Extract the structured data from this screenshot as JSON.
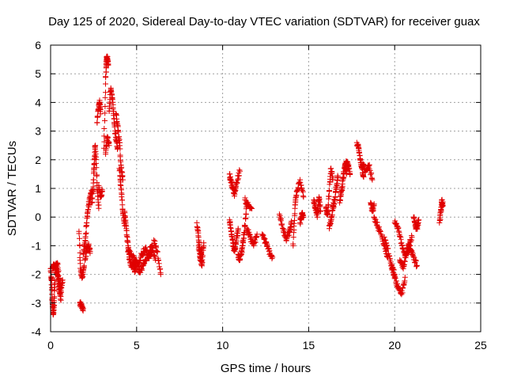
{
  "chart_data": {
    "type": "scatter",
    "title": "Day 125 of 2020, Sidereal Day-to-day VTEC variation (SDTVAR) for receiver guax",
    "xlabel": "GPS time / hours",
    "ylabel": "SDTVAR / TECUs",
    "xlim": [
      0,
      25
    ],
    "ylim": [
      -4,
      6
    ],
    "xticks": [
      0,
      5,
      10,
      15,
      20,
      25
    ],
    "xtick_labels": [
      "0",
      "5",
      "10",
      "15",
      "20",
      "25"
    ],
    "yticks": [
      -4,
      -3,
      -2,
      -1,
      0,
      1,
      2,
      3,
      4,
      5,
      6
    ],
    "ytick_labels": [
      "-4",
      "-3",
      "-2",
      "-1",
      "0",
      "1",
      "2",
      "3",
      "4",
      "5",
      "6"
    ],
    "grid": true,
    "marker": "+",
    "color": "#e00000",
    "series": [
      {
        "name": "SDTVAR",
        "segments": [
          {
            "x": [
              0.0,
              0.05,
              0.1,
              0.15,
              0.2,
              0.25
            ],
            "y": [
              -1.8,
              -2.2,
              -3.0,
              -3.4,
              -3.1,
              -2.2
            ]
          },
          {
            "x": [
              0.1,
              0.2,
              0.3,
              0.4,
              0.5,
              0.6
            ],
            "y": [
              -1.8,
              -1.7,
              -1.8,
              -2.0,
              -2.5,
              -2.9
            ]
          },
          {
            "x": [
              0.3,
              0.4,
              0.5,
              0.6,
              0.7
            ],
            "y": [
              -1.7,
              -1.6,
              -2.3,
              -2.6,
              -2.2
            ]
          },
          {
            "x": [
              1.65,
              1.75,
              1.85,
              1.95
            ],
            "y": [
              -0.5,
              -1.9,
              -2.1,
              -1.7
            ]
          },
          {
            "x": [
              1.7,
              1.8,
              1.9
            ],
            "y": [
              -3.0,
              -3.1,
              -3.2
            ]
          },
          {
            "x": [
              1.9,
              2.0,
              2.1,
              2.2,
              2.3,
              2.4
            ],
            "y": [
              -1.3,
              -0.9,
              -0.2,
              0.4,
              0.7,
              0.9
            ]
          },
          {
            "x": [
              2.0,
              2.1,
              2.2,
              2.3
            ],
            "y": [
              -1.5,
              -1.1,
              -1.0,
              -1.2
            ]
          },
          {
            "x": [
              2.4,
              2.5,
              2.55,
              2.6,
              2.7,
              2.8
            ],
            "y": [
              0.5,
              1.3,
              2.0,
              2.5,
              1.1,
              0.3
            ]
          },
          {
            "x": [
              2.7,
              2.8,
              2.85,
              2.9
            ],
            "y": [
              3.3,
              3.9,
              4.0,
              3.6
            ]
          },
          {
            "x": [
              2.8,
              2.9,
              3.0
            ],
            "y": [
              1.1,
              0.7,
              0.9
            ]
          },
          {
            "x": [
              3.1,
              3.2,
              3.25,
              3.3,
              3.35
            ],
            "y": [
              2.4,
              4.9,
              5.5,
              5.6,
              5.3
            ]
          },
          {
            "x": [
              3.2,
              3.3,
              3.4
            ],
            "y": [
              2.2,
              2.8,
              2.5
            ]
          },
          {
            "x": [
              3.4,
              3.5,
              3.6,
              3.7,
              3.8,
              3.9
            ],
            "y": [
              3.7,
              4.5,
              4.1,
              3.3,
              2.7,
              2.4
            ]
          },
          {
            "x": [
              3.8,
              3.9,
              4.0,
              4.1,
              4.2
            ],
            "y": [
              3.6,
              3.2,
              2.6,
              1.7,
              1.3
            ]
          },
          {
            "x": [
              4.0,
              4.1,
              4.2,
              4.3
            ],
            "y": [
              1.7,
              1.0,
              0.2,
              -0.3
            ]
          },
          {
            "x": [
              4.3,
              4.4,
              4.5,
              4.6,
              4.7,
              4.8,
              4.9,
              5.0
            ],
            "y": [
              0.2,
              -0.4,
              -1.0,
              -1.5,
              -1.7,
              -1.6,
              -1.9,
              -1.5
            ]
          },
          {
            "x": [
              4.5,
              4.7,
              4.9,
              5.1,
              5.3,
              5.5,
              5.7,
              5.9
            ],
            "y": [
              -1.2,
              -1.3,
              -1.5,
              -1.7,
              -1.3,
              -1.1,
              -1.4,
              -1.2
            ]
          },
          {
            "x": [
              5.1,
              5.3,
              5.5,
              5.7,
              5.9,
              6.1
            ],
            "y": [
              -1.9,
              -1.8,
              -1.5,
              -1.3,
              -1.0,
              -1.5
            ]
          },
          {
            "x": [
              6.0,
              6.2,
              6.4
            ],
            "y": [
              -0.8,
              -1.2,
              -2.0
            ]
          },
          {
            "x": [
              8.5,
              8.6,
              8.7,
              8.8,
              8.9
            ],
            "y": [
              -0.2,
              -0.7,
              -1.4,
              -1.7,
              -0.9
            ]
          },
          {
            "x": [
              8.6,
              8.7,
              8.8
            ],
            "y": [
              -1.0,
              -1.5,
              -1.1
            ]
          },
          {
            "x": [
              10.4,
              10.5,
              10.6,
              10.7,
              10.8,
              10.9
            ],
            "y": [
              -0.1,
              -0.5,
              -0.9,
              -1.2,
              -0.8,
              -0.4
            ]
          },
          {
            "x": [
              10.4,
              10.5,
              10.6,
              10.7,
              10.8,
              11.0
            ],
            "y": [
              1.5,
              1.2,
              1.0,
              0.8,
              1.2,
              1.6
            ]
          },
          {
            "x": [
              10.9,
              11.0,
              11.1,
              11.2,
              11.3,
              11.4
            ],
            "y": [
              -1.3,
              -1.5,
              -1.2,
              -0.8,
              -0.3,
              0.5
            ]
          },
          {
            "x": [
              11.3,
              11.5,
              11.7
            ],
            "y": [
              0.6,
              0.4,
              0.3
            ]
          },
          {
            "x": [
              11.4,
              11.6,
              11.8,
              12.0
            ],
            "y": [
              -0.4,
              -0.7,
              -1.0,
              -0.6
            ]
          },
          {
            "x": [
              12.3,
              12.5,
              12.7,
              12.9
            ],
            "y": [
              -0.6,
              -0.9,
              -1.2,
              -1.4
            ]
          },
          {
            "x": [
              13.3,
              13.5,
              13.7,
              13.9,
              14.0
            ],
            "y": [
              0.1,
              -0.4,
              -0.8,
              -0.5,
              -0.2
            ]
          },
          {
            "x": [
              14.1,
              14.2,
              14.3,
              14.5,
              14.7
            ],
            "y": [
              -1.0,
              0.3,
              0.9,
              1.3,
              0.7
            ]
          },
          {
            "x": [
              14.5,
              14.6,
              14.7
            ],
            "y": [
              -0.2,
              0.1,
              0.0
            ]
          },
          {
            "x": [
              15.3,
              15.4,
              15.5,
              15.6,
              15.7
            ],
            "y": [
              0.6,
              0.3,
              0.0,
              0.7,
              0.2
            ]
          },
          {
            "x": [
              16.0,
              16.1,
              16.2,
              16.3,
              16.4
            ],
            "y": [
              0.3,
              0.1,
              0.9,
              1.7,
              1.3
            ]
          },
          {
            "x": [
              16.2,
              16.3,
              16.4,
              16.5,
              16.6,
              16.7
            ],
            "y": [
              -0.4,
              -0.1,
              0.3,
              0.6,
              1.0,
              1.4
            ]
          },
          {
            "x": [
              16.8,
              16.9,
              17.0,
              17.1,
              17.2
            ],
            "y": [
              0.5,
              0.9,
              1.3,
              1.8,
              1.5
            ]
          },
          {
            "x": [
              17.1,
              17.2,
              17.3,
              17.4
            ],
            "y": [
              1.7,
              1.9,
              1.8,
              1.5
            ]
          },
          {
            "x": [
              17.8,
              17.9,
              18.0,
              18.1,
              18.2
            ],
            "y": [
              2.6,
              2.4,
              2.0,
              1.7,
              1.4
            ]
          },
          {
            "x": [
              18.1,
              18.3,
              18.5,
              18.7
            ],
            "y": [
              1.9,
              1.6,
              1.8,
              1.3
            ]
          },
          {
            "x": [
              18.6,
              18.7,
              18.8
            ],
            "y": [
              0.5,
              0.2,
              0.4
            ]
          },
          {
            "x": [
              18.8,
              19.0,
              19.2,
              19.4,
              19.6
            ],
            "y": [
              0.0,
              -0.3,
              -0.6,
              -1.0,
              -1.4
            ]
          },
          {
            "x": [
              19.4,
              19.6,
              19.8,
              20.0
            ],
            "y": [
              -0.7,
              -1.1,
              -1.7,
              -2.0
            ]
          },
          {
            "x": [
              19.8,
              20.0,
              20.2,
              20.4,
              20.6
            ],
            "y": [
              -1.7,
              -2.1,
              -2.5,
              -2.7,
              -2.1
            ]
          },
          {
            "x": [
              20.0,
              20.2,
              20.4,
              20.6,
              20.8,
              21.0
            ],
            "y": [
              -0.2,
              -0.4,
              -0.9,
              -1.3,
              -1.0,
              -0.7
            ]
          },
          {
            "x": [
              20.3,
              20.5,
              20.7,
              20.9,
              21.1,
              21.3
            ],
            "y": [
              -1.5,
              -1.8,
              -1.3,
              -1.0,
              -1.4,
              -1.7
            ]
          },
          {
            "x": [
              21.1,
              21.2,
              21.3,
              21.4
            ],
            "y": [
              0.0,
              -0.3,
              -0.4,
              -0.1
            ]
          },
          {
            "x": [
              22.6,
              22.7,
              22.75,
              22.8
            ],
            "y": [
              -0.2,
              0.2,
              0.6,
              0.4
            ]
          }
        ]
      }
    ]
  }
}
